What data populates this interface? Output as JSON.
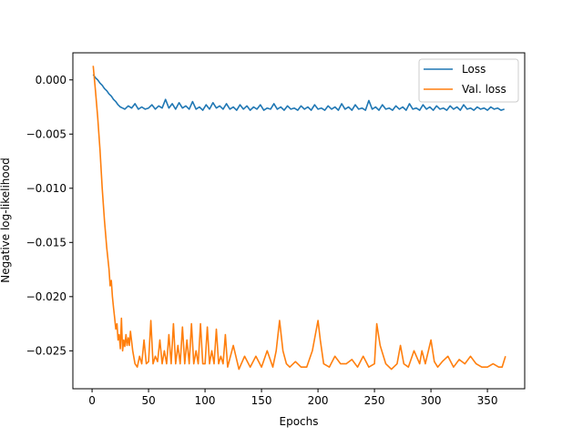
{
  "chart_data": {
    "type": "line",
    "title": "",
    "xlabel": "Epochs",
    "ylabel": "Negative log-likelihood",
    "xlim": [
      -17,
      383
    ],
    "ylim": [
      -0.0285,
      0.0025
    ],
    "xticks": [
      0,
      50,
      100,
      150,
      200,
      250,
      300,
      350
    ],
    "yticks": [
      0.0,
      -0.005,
      -0.01,
      -0.015,
      -0.02,
      -0.025
    ],
    "ytick_labels": [
      "0.000",
      "−0.005",
      "−0.010",
      "−0.015",
      "−0.020",
      "−0.025"
    ],
    "grid": false,
    "legend_position": "top-right",
    "series": [
      {
        "name": "Loss",
        "color": "#1f77b4",
        "x": [
          1,
          3,
          5,
          7,
          9,
          11,
          13,
          15,
          17,
          19,
          21,
          23,
          25,
          27,
          29,
          32,
          35,
          38,
          41,
          44,
          47,
          50,
          53,
          56,
          59,
          62,
          65,
          68,
          71,
          74,
          77,
          80,
          83,
          86,
          89,
          92,
          95,
          98,
          101,
          104,
          107,
          110,
          113,
          116,
          119,
          122,
          125,
          128,
          131,
          134,
          137,
          140,
          143,
          146,
          149,
          152,
          155,
          158,
          161,
          164,
          167,
          170,
          173,
          176,
          179,
          182,
          185,
          188,
          191,
          194,
          197,
          200,
          203,
          206,
          209,
          212,
          215,
          218,
          221,
          224,
          227,
          230,
          233,
          236,
          239,
          242,
          245,
          248,
          251,
          254,
          257,
          260,
          263,
          266,
          269,
          272,
          275,
          278,
          281,
          284,
          287,
          290,
          293,
          296,
          299,
          302,
          305,
          308,
          311,
          314,
          317,
          320,
          323,
          326,
          329,
          332,
          335,
          338,
          341,
          344,
          347,
          350,
          353,
          356,
          359,
          362,
          365
        ],
        "y": [
          0.0005,
          0.0002,
          0.0,
          -0.0003,
          -0.0005,
          -0.0008,
          -0.001,
          -0.0013,
          -0.0015,
          -0.0018,
          -0.002,
          -0.0023,
          -0.0025,
          -0.0026,
          -0.0027,
          -0.0024,
          -0.0026,
          -0.0022,
          -0.0027,
          -0.0025,
          -0.0027,
          -0.0026,
          -0.0023,
          -0.0027,
          -0.0024,
          -0.0026,
          -0.0018,
          -0.0026,
          -0.0022,
          -0.0027,
          -0.0021,
          -0.0026,
          -0.0024,
          -0.0027,
          -0.002,
          -0.0027,
          -0.0025,
          -0.0028,
          -0.0023,
          -0.0027,
          -0.0021,
          -0.0026,
          -0.0024,
          -0.0027,
          -0.0022,
          -0.0027,
          -0.0025,
          -0.0028,
          -0.0023,
          -0.0027,
          -0.0024,
          -0.0028,
          -0.0025,
          -0.0027,
          -0.0023,
          -0.0028,
          -0.0026,
          -0.0027,
          -0.0022,
          -0.0027,
          -0.0025,
          -0.0028,
          -0.0024,
          -0.0027,
          -0.0026,
          -0.0028,
          -0.0024,
          -0.0027,
          -0.0025,
          -0.0028,
          -0.0023,
          -0.0027,
          -0.0026,
          -0.0028,
          -0.0024,
          -0.0027,
          -0.0025,
          -0.0028,
          -0.0022,
          -0.0027,
          -0.0025,
          -0.0028,
          -0.0023,
          -0.0027,
          -0.0026,
          -0.0028,
          -0.0019,
          -0.0027,
          -0.0025,
          -0.0028,
          -0.0023,
          -0.0027,
          -0.0026,
          -0.0028,
          -0.0024,
          -0.0027,
          -0.0025,
          -0.0028,
          -0.0022,
          -0.0027,
          -0.0026,
          -0.0028,
          -0.0023,
          -0.0027,
          -0.0025,
          -0.0028,
          -0.0024,
          -0.0027,
          -0.0026,
          -0.0028,
          -0.0024,
          -0.0027,
          -0.0025,
          -0.0028,
          -0.0023,
          -0.0027,
          -0.0026,
          -0.0028,
          -0.0025,
          -0.0027,
          -0.0026,
          -0.0028,
          -0.0025,
          -0.0027,
          -0.0026,
          -0.0028,
          -0.0027
        ]
      },
      {
        "name": "Val. loss",
        "color": "#ff7f0e",
        "x": [
          1,
          3,
          5,
          7,
          9,
          11,
          13,
          15,
          16,
          17,
          18,
          19,
          20,
          21,
          22,
          23,
          24,
          25,
          26,
          27,
          28,
          29,
          30,
          31,
          32,
          33,
          34,
          36,
          38,
          40,
          42,
          44,
          46,
          48,
          50,
          52,
          54,
          56,
          58,
          60,
          62,
          64,
          66,
          68,
          70,
          72,
          74,
          76,
          78,
          80,
          82,
          84,
          86,
          88,
          90,
          92,
          94,
          96,
          98,
          100,
          102,
          104,
          106,
          108,
          110,
          112,
          114,
          116,
          118,
          120,
          125,
          130,
          135,
          140,
          145,
          150,
          155,
          160,
          163,
          166,
          169,
          172,
          175,
          180,
          185,
          190,
          195,
          200,
          202,
          205,
          210,
          215,
          220,
          225,
          230,
          235,
          240,
          245,
          250,
          252,
          255,
          260,
          265,
          270,
          273,
          276,
          280,
          285,
          290,
          292,
          295,
          300,
          303,
          306,
          310,
          315,
          320,
          325,
          330,
          335,
          340,
          345,
          350,
          355,
          360,
          363,
          366
        ],
        "y": [
          0.0013,
          -0.001,
          -0.0035,
          -0.0065,
          -0.01,
          -0.013,
          -0.0155,
          -0.0175,
          -0.019,
          -0.0185,
          -0.02,
          -0.021,
          -0.022,
          -0.023,
          -0.0225,
          -0.024,
          -0.0235,
          -0.0248,
          -0.022,
          -0.025,
          -0.024,
          -0.0246,
          -0.0235,
          -0.0245,
          -0.0238,
          -0.0245,
          -0.0232,
          -0.025,
          -0.0262,
          -0.0265,
          -0.0255,
          -0.0262,
          -0.024,
          -0.0262,
          -0.026,
          -0.0222,
          -0.0262,
          -0.0255,
          -0.026,
          -0.024,
          -0.0262,
          -0.025,
          -0.0262,
          -0.0235,
          -0.0262,
          -0.0225,
          -0.0262,
          -0.0245,
          -0.0262,
          -0.0228,
          -0.0262,
          -0.024,
          -0.0262,
          -0.0225,
          -0.0262,
          -0.025,
          -0.0262,
          -0.0225,
          -0.0262,
          -0.0262,
          -0.0228,
          -0.0262,
          -0.025,
          -0.0262,
          -0.023,
          -0.0262,
          -0.0255,
          -0.0262,
          -0.0235,
          -0.0265,
          -0.0245,
          -0.0267,
          -0.0255,
          -0.0265,
          -0.0255,
          -0.0265,
          -0.025,
          -0.0265,
          -0.025,
          -0.0222,
          -0.025,
          -0.0262,
          -0.0265,
          -0.026,
          -0.0265,
          -0.0265,
          -0.025,
          -0.0222,
          -0.024,
          -0.0262,
          -0.0265,
          -0.0255,
          -0.0262,
          -0.0262,
          -0.0258,
          -0.0265,
          -0.0255,
          -0.0265,
          -0.0262,
          -0.0225,
          -0.0245,
          -0.0262,
          -0.0267,
          -0.0262,
          -0.0245,
          -0.0262,
          -0.0265,
          -0.025,
          -0.0262,
          -0.025,
          -0.0262,
          -0.024,
          -0.026,
          -0.0265,
          -0.026,
          -0.0255,
          -0.0265,
          -0.0258,
          -0.0262,
          -0.0255,
          -0.0262,
          -0.0265,
          -0.0265,
          -0.0262,
          -0.0265,
          -0.0265,
          -0.0255
        ]
      }
    ]
  }
}
